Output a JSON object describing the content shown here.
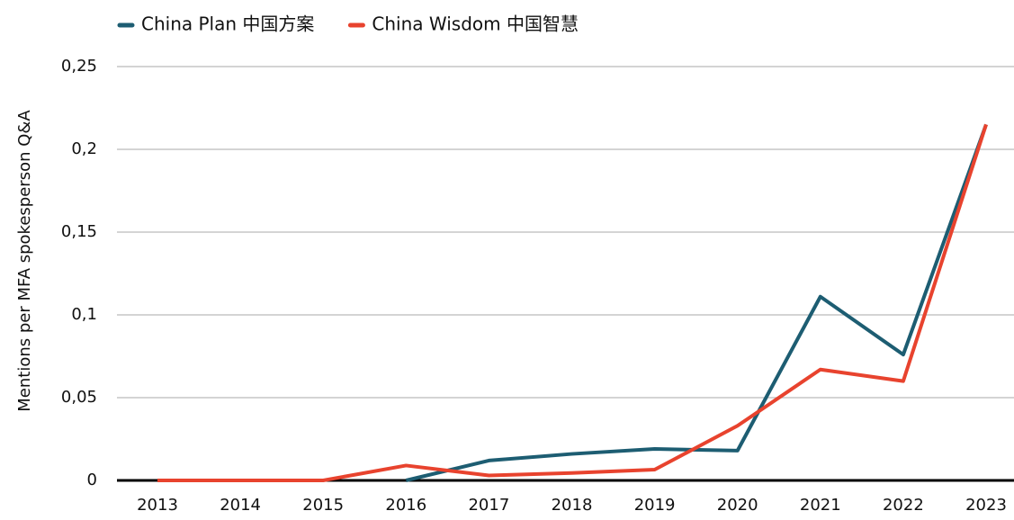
{
  "chart_data": {
    "type": "line",
    "ylabel": "Mentions per MFA spokesperson Q&A",
    "categories": [
      "2013",
      "2014",
      "2015",
      "2016",
      "2017",
      "2018",
      "2019",
      "2020",
      "2021",
      "2022",
      "2023"
    ],
    "series": [
      {
        "name": "China Plan 中国方案",
        "color": "#1d5d72",
        "values": [
          null,
          null,
          null,
          0,
          0.012,
          0.016,
          0.019,
          0.018,
          0.111,
          0.076,
          0.215
        ]
      },
      {
        "name": "China Wisdom 中国智慧",
        "color": "#e8432e",
        "values": [
          0,
          0,
          0,
          0.009,
          0.003,
          0.0045,
          0.0065,
          0.033,
          0.067,
          0.06,
          0.215
        ]
      }
    ],
    "ylim": [
      0,
      0.25
    ],
    "yticks": [
      0,
      {
        "value": 0.05,
        "label": "0,05"
      },
      {
        "value": 0.1,
        "label": "0,1"
      },
      {
        "value": 0.15,
        "label": "0,15"
      },
      {
        "value": 0.2,
        "label": "0,2"
      },
      {
        "value": 0.25,
        "label": "0,25"
      }
    ],
    "grid": true,
    "legend": "top"
  }
}
